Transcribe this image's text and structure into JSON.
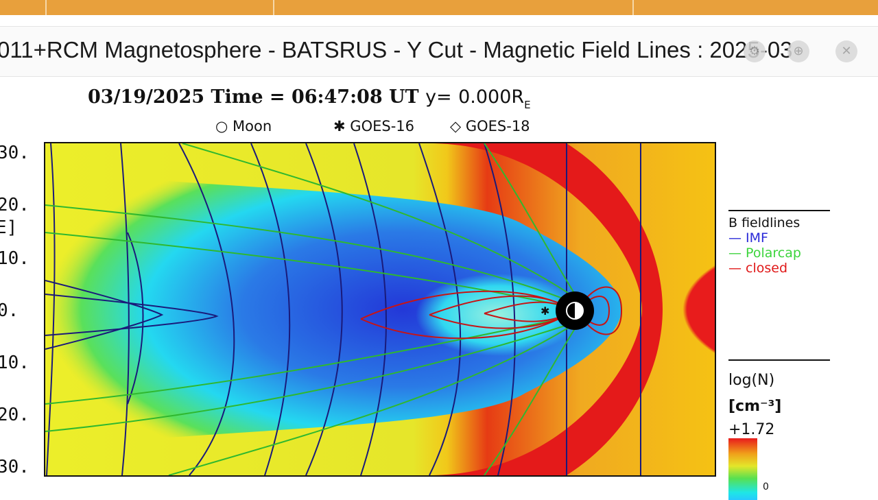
{
  "window": {
    "title": "011+RCM Magnetosphere - BATSRUS - Y Cut - Magnetic Field Lines : 2025-03"
  },
  "figure": {
    "date": "03/19/2025",
    "time_label": "Time =",
    "time": "06:47:08 UT",
    "y_label": "y=",
    "y_value": "0.000R",
    "y_sub": "E",
    "satellites": [
      {
        "symbol": "○",
        "name": "Moon"
      },
      {
        "symbol": "✱",
        "name": "GOES-16"
      },
      {
        "symbol": "◇",
        "name": "GOES-18"
      }
    ],
    "yticks": [
      "30.",
      "20.",
      "10.",
      "0.",
      "10.",
      "20.",
      "30."
    ],
    "ylabel_fragment": "E]",
    "legend": {
      "title": "B fieldlines",
      "items": [
        {
          "label": "IMF",
          "color": "#2a2ad8"
        },
        {
          "label": "Polarcap",
          "color": "#3cd43c"
        },
        {
          "label": "closed",
          "color": "#e01818"
        }
      ]
    },
    "colorbar": {
      "quantity": "log(N)",
      "unit": "[cm⁻³]",
      "max": "+1.72",
      "min": "0"
    }
  },
  "colors": {
    "topbar": "#e8a03c",
    "imf_line": "#1a1a7a",
    "polarcap_line": "#2fb82f",
    "closed_line": "#c81414"
  }
}
